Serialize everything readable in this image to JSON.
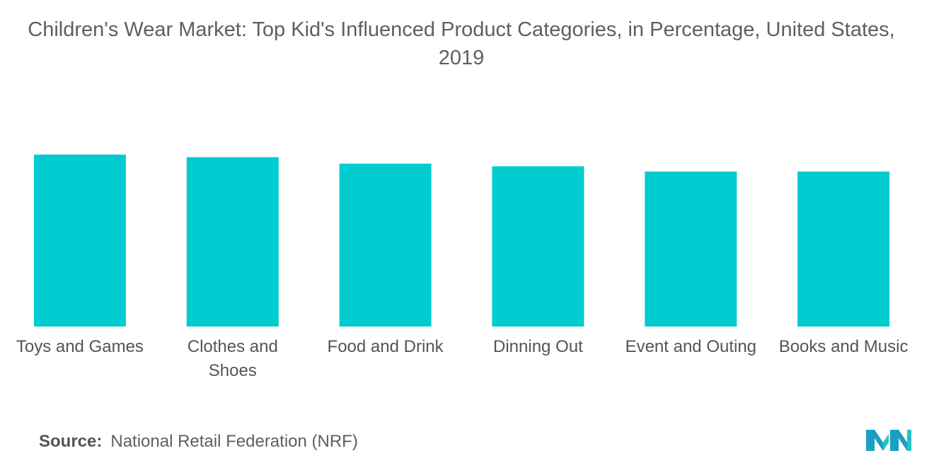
{
  "chart_data": {
    "type": "bar",
    "title": "Children's Wear Market: Top Kid's Influenced Product Categories, in Percentage, United States, 2019",
    "categories": [
      [
        "Toys and Games"
      ],
      [
        "Clothes and",
        "Shoes"
      ],
      [
        "Food and Drink"
      ],
      [
        "Dinning Out"
      ],
      [
        "Event and Outing"
      ],
      [
        "Books and Music"
      ]
    ],
    "values": [
      66,
      65,
      62.5,
      61.5,
      59.5,
      59.5
    ],
    "ylim": [
      0,
      70
    ],
    "grid": false,
    "legend": "none",
    "bar_color": "#00cccf"
  },
  "source": {
    "label": "Source:",
    "text": "National Retail Federation (NRF)"
  },
  "logo_icon": "mordor-intelligence-logo-icon"
}
